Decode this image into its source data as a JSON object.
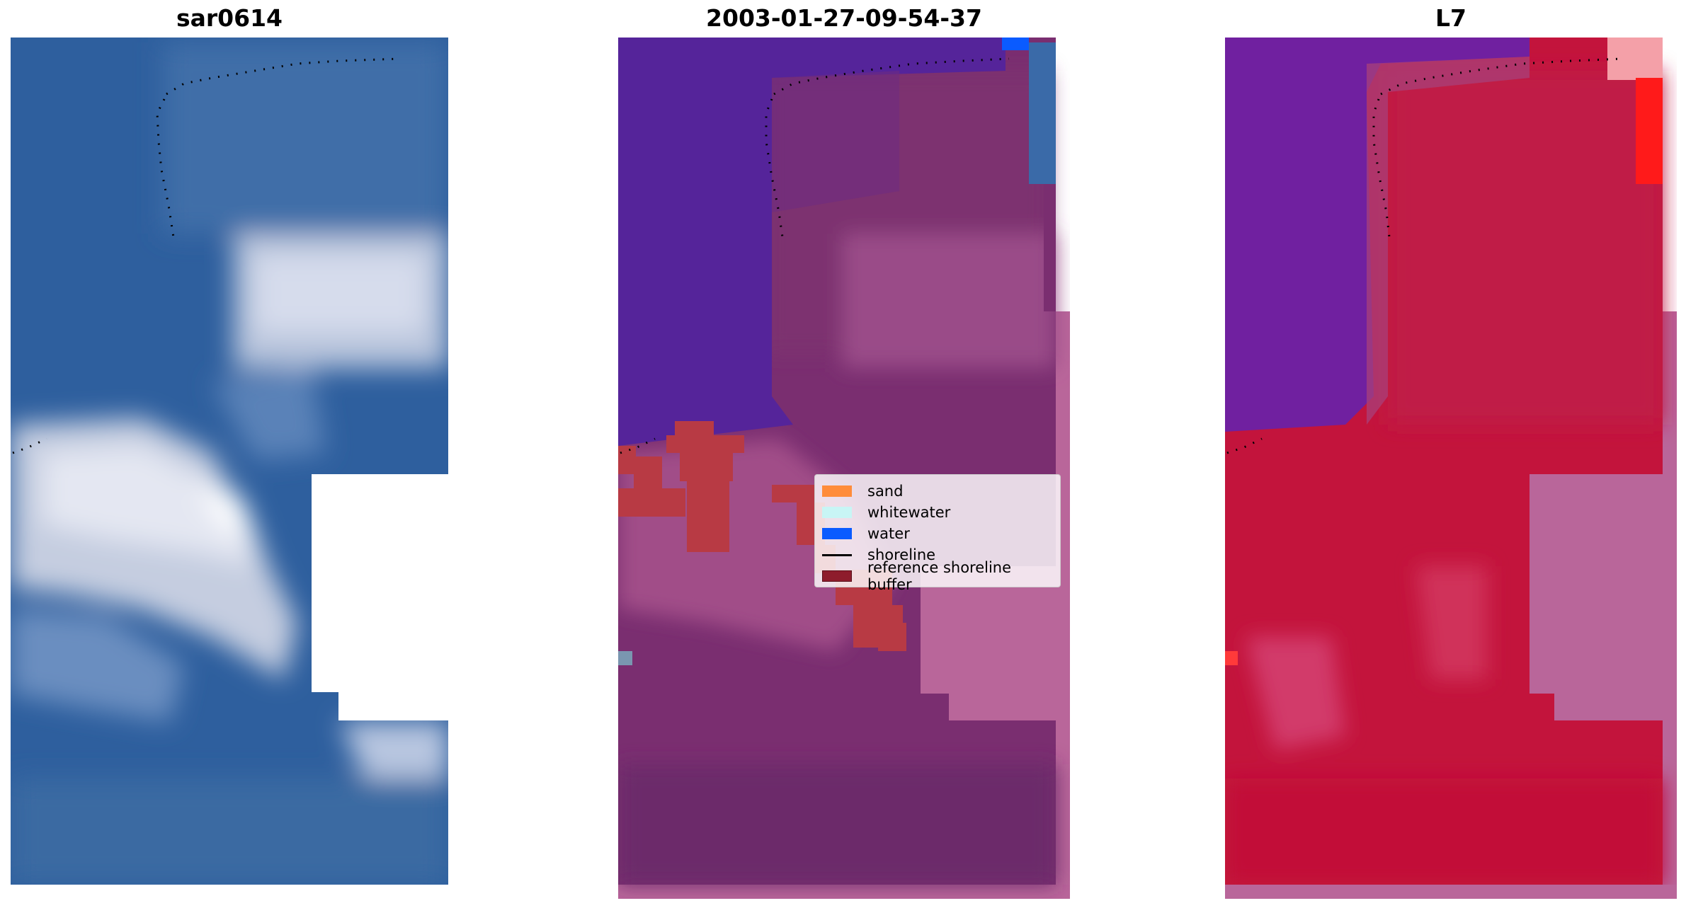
{
  "panels": [
    {
      "title": "sar0614"
    },
    {
      "title": "2003-01-27-09-54-37"
    },
    {
      "title": "L7"
    }
  ],
  "legend": {
    "items": [
      {
        "label": "sand",
        "kind": "patch",
        "color": "#ff8c3a"
      },
      {
        "label": "whitewater",
        "kind": "patch",
        "color": "#c8f5f5"
      },
      {
        "label": "water",
        "kind": "patch",
        "color": "#0a5bff"
      },
      {
        "label": "shoreline",
        "kind": "line",
        "color": "#000000"
      },
      {
        "label": "reference shoreline buffer",
        "kind": "patch",
        "color": "#8e1c2c"
      }
    ]
  },
  "colors": {
    "sar_sea": "#2e5f9e",
    "sar_surf": "#d4d8e8",
    "class_water_overlay": "#55249a",
    "class_land": "#7a2e70",
    "class_buffer_red": "#b83a44",
    "class_pad": "#b9669a",
    "l7_water": "#7020a0",
    "l7_land": "#c3143c",
    "l7_pad": "#b9669a"
  }
}
